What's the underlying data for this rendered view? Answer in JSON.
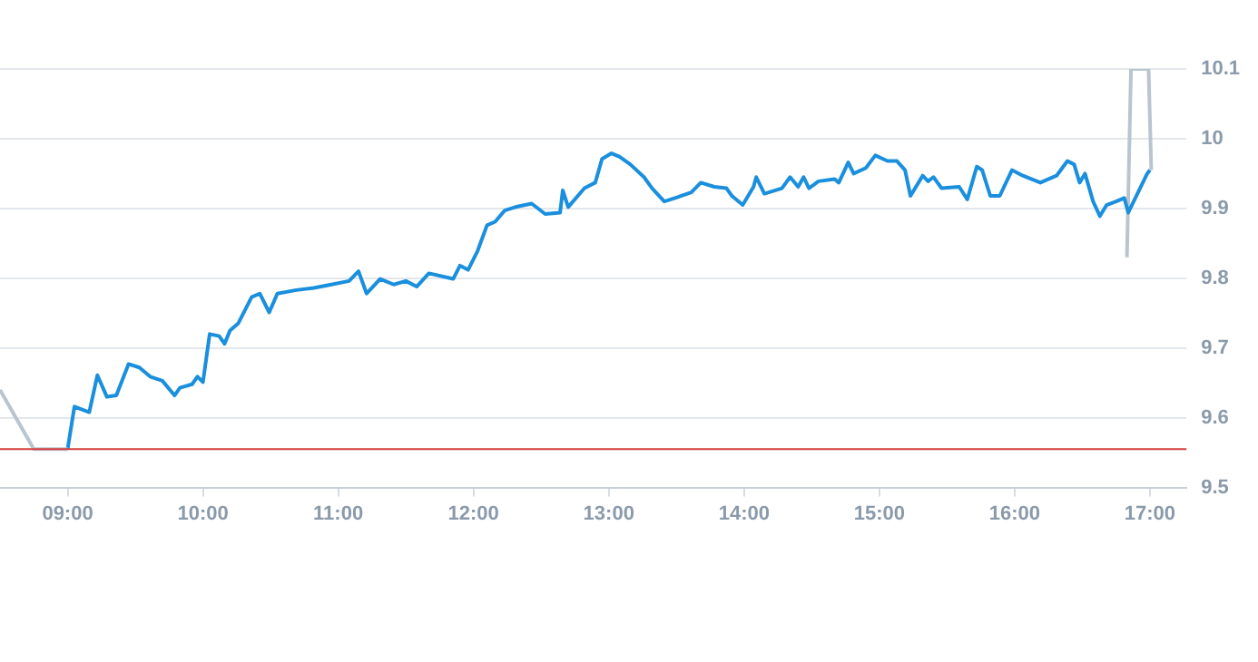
{
  "chart_data": {
    "type": "line",
    "xlim": [
      8.5,
      17.27
    ],
    "ylim": [
      9.5,
      10.1
    ],
    "xticks": [
      {
        "value": 9,
        "label": "09:00"
      },
      {
        "value": 10,
        "label": "10:00"
      },
      {
        "value": 11,
        "label": "11:00"
      },
      {
        "value": 12,
        "label": "12:00"
      },
      {
        "value": 13,
        "label": "13:00"
      },
      {
        "value": 14,
        "label": "14:00"
      },
      {
        "value": 15,
        "label": "15:00"
      },
      {
        "value": 16,
        "label": "16:00"
      },
      {
        "value": 17,
        "label": "17:00"
      }
    ],
    "yticks": [
      9.5,
      9.6,
      9.7,
      9.8,
      9.9,
      10,
      10.1
    ],
    "grid": "y",
    "legend": false,
    "marker": "none",
    "ref_lines": [
      {
        "axis": "y",
        "value": 9.555,
        "color": "#d43d3d"
      }
    ],
    "series": [
      {
        "color": "#b8c5d0",
        "x": [
          8.5,
          8.75,
          9.0
        ],
        "values": [
          9.64,
          9.555,
          9.555
        ]
      },
      {
        "color": "#1a8fdd",
        "x": [
          9.0,
          9.05,
          9.16,
          9.22,
          9.29,
          9.36,
          9.45,
          9.53,
          9.61,
          9.7,
          9.79,
          9.83,
          9.92,
          9.96,
          10.0,
          10.05,
          10.12,
          10.16,
          10.2,
          10.26,
          10.36,
          10.42,
          10.49,
          10.55,
          10.69,
          10.82,
          10.95,
          11.08,
          11.15,
          11.21,
          11.31,
          11.41,
          11.5,
          11.58,
          11.67,
          11.85,
          11.9,
          11.96,
          12.03,
          12.1,
          12.16,
          12.23,
          12.31,
          12.43,
          12.53,
          12.64,
          12.66,
          12.7,
          12.82,
          12.9,
          12.95,
          13.02,
          13.08,
          13.16,
          13.26,
          13.32,
          13.41,
          13.49,
          13.61,
          13.68,
          13.78,
          13.87,
          13.91,
          13.99,
          14.07,
          14.09,
          14.15,
          14.28,
          14.34,
          14.4,
          14.44,
          14.48,
          14.55,
          14.67,
          14.7,
          14.77,
          14.81,
          14.9,
          14.97,
          15.06,
          15.13,
          15.19,
          15.23,
          15.32,
          15.36,
          15.4,
          15.46,
          15.59,
          15.65,
          15.72,
          15.76,
          15.82,
          15.89,
          15.98,
          16.06,
          16.19,
          16.31,
          16.39,
          16.44,
          16.48,
          16.52,
          16.58,
          16.63,
          16.68,
          16.75,
          16.81,
          16.84,
          16.98,
          17.0
        ],
        "values": [
          9.555,
          9.616,
          9.608,
          9.661,
          9.63,
          9.632,
          9.677,
          9.672,
          9.659,
          9.653,
          9.632,
          9.643,
          9.648,
          9.659,
          9.651,
          9.72,
          9.717,
          9.706,
          9.725,
          9.735,
          9.773,
          9.778,
          9.751,
          9.778,
          9.783,
          9.786,
          9.791,
          9.796,
          9.81,
          9.778,
          9.799,
          9.791,
          9.796,
          9.788,
          9.807,
          9.799,
          9.818,
          9.812,
          9.839,
          9.876,
          9.881,
          9.897,
          9.902,
          9.907,
          9.892,
          9.894,
          9.926,
          9.902,
          9.929,
          9.937,
          9.971,
          9.979,
          9.974,
          9.963,
          9.945,
          9.929,
          9.91,
          9.915,
          9.923,
          9.937,
          9.931,
          9.929,
          9.918,
          9.905,
          9.931,
          9.945,
          9.921,
          9.929,
          9.945,
          9.931,
          9.945,
          9.929,
          9.939,
          9.942,
          9.937,
          9.966,
          9.95,
          9.958,
          9.976,
          9.968,
          9.968,
          9.955,
          9.918,
          9.947,
          9.939,
          9.945,
          9.929,
          9.931,
          9.913,
          9.96,
          9.955,
          9.918,
          9.918,
          9.955,
          9.947,
          9.937,
          9.947,
          9.968,
          9.963,
          9.937,
          9.95,
          9.91,
          9.889,
          9.905,
          9.91,
          9.915,
          9.894,
          9.95,
          9.955
        ]
      },
      {
        "color": "#b8c5d0",
        "x": [
          16.83,
          16.86,
          16.99,
          17.01
        ],
        "values": [
          9.83,
          10.1,
          10.1,
          9.955
        ]
      }
    ]
  }
}
